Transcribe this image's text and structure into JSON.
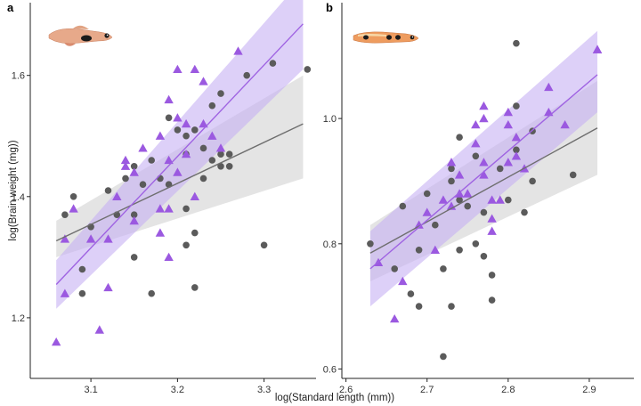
{
  "figure": {
    "xlabel": "log(Standard length (mm))",
    "ylabel": "log(Brain weight (mg))"
  },
  "colors": {
    "grey_points": "#5b5b5b",
    "purple_points": "#9b59e0",
    "grey_line": "#6e6e6e",
    "purple_line": "#9f63e2",
    "grey_band": "#d6d6d6",
    "purple_band": "#c6b0f3",
    "fish_body": "#e7a98a"
  },
  "chart_data": [
    {
      "type": "scatter",
      "panel": "a",
      "xlabel": "log(Standard length (mm))",
      "ylabel": "log(Brain weight (mg))",
      "xlim": [
        3.03,
        3.36
      ],
      "ylim": [
        1.1,
        1.72
      ],
      "xticks": [
        3.1,
        3.2,
        3.3
      ],
      "xtick_labels": [
        "3.1",
        "3.2",
        "3.3"
      ],
      "yticks": [
        1.2,
        1.4,
        1.6
      ],
      "ytick_labels": [
        "1.2",
        "1.4",
        "1.6"
      ],
      "grid": false,
      "series": [
        {
          "marker": "circle",
          "color": "#5b5b5b",
          "points": [
            [
              3.08,
              1.4
            ],
            [
              3.07,
              1.37
            ],
            [
              3.09,
              1.28
            ],
            [
              3.09,
              1.24
            ],
            [
              3.1,
              1.35
            ],
            [
              3.12,
              1.41
            ],
            [
              3.13,
              1.37
            ],
            [
              3.14,
              1.43
            ],
            [
              3.15,
              1.37
            ],
            [
              3.15,
              1.45
            ],
            [
              3.15,
              1.3
            ],
            [
              3.16,
              1.42
            ],
            [
              3.17,
              1.24
            ],
            [
              3.17,
              1.46
            ],
            [
              3.18,
              1.43
            ],
            [
              3.19,
              1.42
            ],
            [
              3.19,
              1.53
            ],
            [
              3.2,
              1.51
            ],
            [
              3.21,
              1.5
            ],
            [
              3.21,
              1.47
            ],
            [
              3.21,
              1.38
            ],
            [
              3.21,
              1.32
            ],
            [
              3.22,
              1.34
            ],
            [
              3.22,
              1.25
            ],
            [
              3.22,
              1.51
            ],
            [
              3.23,
              1.48
            ],
            [
              3.23,
              1.43
            ],
            [
              3.24,
              1.46
            ],
            [
              3.24,
              1.55
            ],
            [
              3.25,
              1.57
            ],
            [
              3.25,
              1.47
            ],
            [
              3.25,
              1.45
            ],
            [
              3.26,
              1.47
            ],
            [
              3.26,
              1.45
            ],
            [
              3.28,
              1.6
            ],
            [
              3.3,
              1.32
            ],
            [
              3.31,
              1.62
            ],
            [
              3.35,
              1.61
            ]
          ]
        },
        {
          "marker": "triangle",
          "color": "#9b59e0",
          "points": [
            [
              3.06,
              1.16
            ],
            [
              3.07,
              1.24
            ],
            [
              3.07,
              1.33
            ],
            [
              3.08,
              1.38
            ],
            [
              3.1,
              1.33
            ],
            [
              3.11,
              1.18
            ],
            [
              3.12,
              1.33
            ],
            [
              3.12,
              1.25
            ],
            [
              3.13,
              1.4
            ],
            [
              3.14,
              1.45
            ],
            [
              3.14,
              1.46
            ],
            [
              3.15,
              1.36
            ],
            [
              3.15,
              1.44
            ],
            [
              3.16,
              1.48
            ],
            [
              3.18,
              1.5
            ],
            [
              3.18,
              1.38
            ],
            [
              3.18,
              1.34
            ],
            [
              3.19,
              1.3
            ],
            [
              3.19,
              1.46
            ],
            [
              3.19,
              1.38
            ],
            [
              3.19,
              1.56
            ],
            [
              3.2,
              1.61
            ],
            [
              3.2,
              1.44
            ],
            [
              3.2,
              1.53
            ],
            [
              3.21,
              1.52
            ],
            [
              3.21,
              1.47
            ],
            [
              3.22,
              1.61
            ],
            [
              3.22,
              1.4
            ],
            [
              3.23,
              1.52
            ],
            [
              3.23,
              1.59
            ],
            [
              3.24,
              1.5
            ],
            [
              3.25,
              1.48
            ],
            [
              3.27,
              1.64
            ]
          ]
        }
      ],
      "fits": [
        {
          "color": "#6e6e6e",
          "x": [
            3.06,
            3.345
          ],
          "y": [
            1.327,
            1.52
          ],
          "band_low": [
            1.3,
            1.43
          ],
          "band_high": [
            1.36,
            1.6
          ]
        },
        {
          "color": "#9f63e2",
          "x": [
            3.06,
            3.345
          ],
          "y": [
            1.255,
            1.685
          ],
          "band_low": [
            1.215,
            1.61
          ],
          "band_high": [
            1.295,
            1.76
          ]
        }
      ]
    },
    {
      "type": "scatter",
      "panel": "b",
      "xlabel": "log(Standard length (mm))",
      "ylabel": "",
      "xlim": [
        2.595,
        2.955
      ],
      "ylim": [
        0.585,
        1.185
      ],
      "xticks": [
        2.6,
        2.7,
        2.8,
        2.9
      ],
      "xtick_labels": [
        "2.6",
        "2.7",
        "2.8",
        "2.9"
      ],
      "yticks": [
        0.6,
        0.8,
        1.0
      ],
      "ytick_labels": [
        "0.6",
        "0.8",
        "1.0"
      ],
      "grid": false,
      "series": [
        {
          "marker": "circle",
          "color": "#5b5b5b",
          "points": [
            [
              2.63,
              0.8
            ],
            [
              2.66,
              0.76
            ],
            [
              2.67,
              0.86
            ],
            [
              2.68,
              0.72
            ],
            [
              2.69,
              0.79
            ],
            [
              2.69,
              0.7
            ],
            [
              2.7,
              0.88
            ],
            [
              2.71,
              0.83
            ],
            [
              2.72,
              0.62
            ],
            [
              2.72,
              0.76
            ],
            [
              2.73,
              0.7
            ],
            [
              2.73,
              0.9
            ],
            [
              2.73,
              0.92
            ],
            [
              2.74,
              0.97
            ],
            [
              2.74,
              0.87
            ],
            [
              2.74,
              0.79
            ],
            [
              2.75,
              0.86
            ],
            [
              2.76,
              0.8
            ],
            [
              2.76,
              0.94
            ],
            [
              2.77,
              0.78
            ],
            [
              2.77,
              0.85
            ],
            [
              2.78,
              0.71
            ],
            [
              2.78,
              0.75
            ],
            [
              2.79,
              0.92
            ],
            [
              2.8,
              0.87
            ],
            [
              2.81,
              1.12
            ],
            [
              2.81,
              1.02
            ],
            [
              2.81,
              0.95
            ],
            [
              2.82,
              0.85
            ],
            [
              2.83,
              0.98
            ],
            [
              2.83,
              0.9
            ],
            [
              2.88,
              0.91
            ]
          ]
        },
        {
          "marker": "triangle",
          "color": "#9b59e0",
          "points": [
            [
              2.64,
              0.77
            ],
            [
              2.66,
              0.68
            ],
            [
              2.67,
              0.74
            ],
            [
              2.69,
              0.83
            ],
            [
              2.7,
              0.85
            ],
            [
              2.71,
              0.79
            ],
            [
              2.72,
              0.87
            ],
            [
              2.73,
              0.86
            ],
            [
              2.73,
              0.93
            ],
            [
              2.74,
              0.88
            ],
            [
              2.74,
              0.91
            ],
            [
              2.75,
              0.88
            ],
            [
              2.76,
              0.99
            ],
            [
              2.76,
              0.96
            ],
            [
              2.77,
              1.0
            ],
            [
              2.77,
              1.02
            ],
            [
              2.77,
              0.91
            ],
            [
              2.77,
              0.93
            ],
            [
              2.78,
              0.84
            ],
            [
              2.78,
              0.87
            ],
            [
              2.78,
              0.82
            ],
            [
              2.79,
              0.87
            ],
            [
              2.8,
              1.01
            ],
            [
              2.8,
              0.99
            ],
            [
              2.8,
              0.93
            ],
            [
              2.81,
              0.97
            ],
            [
              2.81,
              0.94
            ],
            [
              2.82,
              0.92
            ],
            [
              2.85,
              1.05
            ],
            [
              2.85,
              1.01
            ],
            [
              2.87,
              0.99
            ],
            [
              2.91,
              1.11
            ],
            [
              2.91,
              1.11
            ]
          ]
        }
      ],
      "fits": [
        {
          "color": "#6e6e6e",
          "x": [
            2.63,
            2.91
          ],
          "y": [
            0.785,
            0.985
          ],
          "band_low": [
            0.74,
            0.91
          ],
          "band_high": [
            0.83,
            1.06
          ]
        },
        {
          "color": "#9f63e2",
          "x": [
            2.63,
            2.91
          ],
          "y": [
            0.76,
            1.07
          ],
          "band_low": [
            0.7,
            1.01
          ],
          "band_high": [
            0.82,
            1.14
          ]
        }
      ]
    }
  ]
}
